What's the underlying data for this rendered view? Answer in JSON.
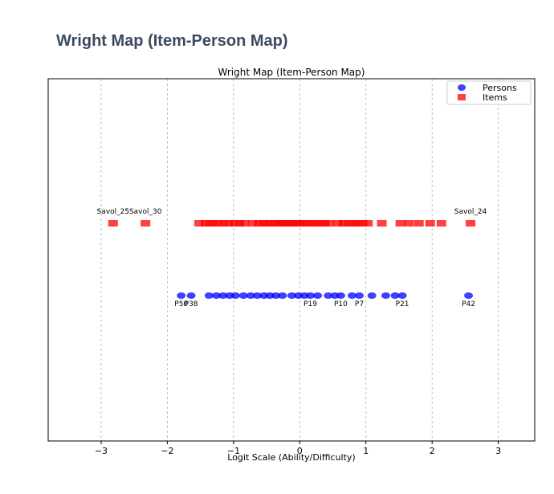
{
  "page": {
    "heading": "Wright Map (Item-Person Map)"
  },
  "chart_data": {
    "type": "scatter",
    "title": "Wright Map (Item-Person Map)",
    "xlabel": "Logit Scale (Ability/Difficulty)",
    "ylabel": "",
    "xlim": [
      -3.8,
      3.55
    ],
    "xticks": [
      -3,
      -2,
      -1,
      0,
      1,
      2,
      3
    ],
    "xtick_labels": [
      "−3",
      "−2",
      "−1",
      "0",
      "1",
      "2",
      "3"
    ],
    "grid": {
      "x": true,
      "y": false,
      "style": "dashed"
    },
    "legend": {
      "position": "top-right",
      "entries": [
        "Persons",
        "Items"
      ]
    },
    "colors": {
      "persons": "#0000ff",
      "items": "#ff0000"
    },
    "series": [
      {
        "name": "Items",
        "marker": "square",
        "y_level": "upper",
        "labels_visible": [
          "Savol_25",
          "Savol_30",
          "Savol_24"
        ],
        "x": [
          -2.82,
          -2.33,
          -1.52,
          -1.42,
          -1.36,
          -1.3,
          -1.22,
          -1.15,
          -1.07,
          -0.99,
          -0.91,
          -0.84,
          -0.71,
          -0.62,
          -0.55,
          -0.49,
          -0.43,
          -0.37,
          -0.31,
          -0.26,
          -0.21,
          -0.16,
          -0.11,
          -0.05,
          0.0,
          0.05,
          0.11,
          0.17,
          0.24,
          0.31,
          0.38,
          0.45,
          0.58,
          0.66,
          0.74,
          0.81,
          0.88,
          0.95,
          1.03,
          1.24,
          1.52,
          1.65,
          1.8,
          1.97,
          2.14,
          2.58
        ]
      },
      {
        "name": "Persons",
        "marker": "circle",
        "y_level": "lower",
        "labels_visible": [
          "P50",
          "P38",
          "P19",
          "P10",
          "P7",
          "P21",
          "P42"
        ],
        "x": [
          -1.79,
          -1.64,
          -1.37,
          -1.26,
          -1.16,
          -1.06,
          -0.97,
          -0.85,
          -0.74,
          -0.64,
          -0.54,
          -0.45,
          -0.36,
          -0.26,
          -0.12,
          -0.02,
          0.07,
          0.16,
          0.27,
          0.43,
          0.53,
          0.62,
          0.79,
          0.9,
          1.09,
          1.3,
          1.44,
          1.55,
          2.55
        ]
      }
    ]
  }
}
